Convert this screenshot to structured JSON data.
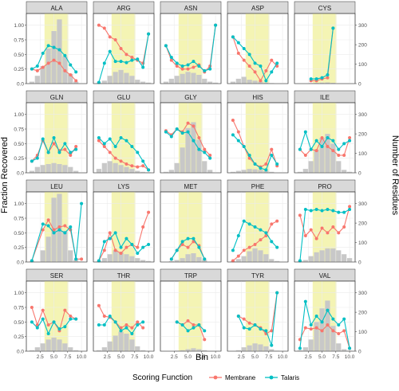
{
  "figure": {
    "xlabel": "Bin",
    "ylabel_left": "Fraction Recovered",
    "ylabel_right": "Number of Residues",
    "legend_title": "Scoring Function",
    "legend_placement": "bottom"
  },
  "colors": {
    "membrane": "#F8766D",
    "talaris": "#00BFC4",
    "bars": "#C8C8C8",
    "highlight": "#F4F4B4",
    "strip": "#D9D9D9",
    "panel_bg": "#FFFFFF",
    "grid": "#EBEBEB"
  },
  "chart_data": {
    "type": "line",
    "x_ticks": [
      "2.5",
      "5.0",
      "7.5",
      "10.0"
    ],
    "y_ticks_left": [
      "0.0",
      "0.25",
      "0.50",
      "0.75",
      "1.00"
    ],
    "y_ticks_right": [
      "0",
      "100",
      "200",
      "300"
    ],
    "xlim": [
      0,
      11
    ],
    "ylim_left": [
      0,
      1.2
    ],
    "ylim_right": [
      0,
      360
    ],
    "highlight_range": [
      3.3,
      7.6
    ],
    "grid": true,
    "legend": [
      "Membrane",
      "Talaris"
    ],
    "series_names": [
      "Membrane",
      "Talaris"
    ],
    "panels": [
      {
        "title": "ALA",
        "bins": [
          1,
          2,
          3,
          4,
          5,
          6,
          7,
          8,
          9
        ],
        "membrane": [
          0.25,
          0.22,
          0.28,
          0.35,
          0.4,
          0.35,
          0.22,
          0.15,
          0.05
        ],
        "talaris": [
          0.25,
          0.3,
          0.52,
          0.65,
          0.62,
          0.58,
          0.48,
          0.32,
          0.2
        ],
        "counts": [
          10,
          40,
          90,
          180,
          270,
          330,
          140,
          50,
          10
        ]
      },
      {
        "title": "ARG",
        "bins": [
          1,
          2,
          3,
          4,
          5,
          6,
          7,
          8,
          9,
          10
        ],
        "membrane": [
          1.0,
          0.95,
          0.8,
          0.75,
          0.6,
          0.5,
          0.45,
          0.4,
          0.35,
          0.85
        ],
        "talaris": [
          0.02,
          0.35,
          0.55,
          0.38,
          0.38,
          0.36,
          0.4,
          0.42,
          0.28,
          0.85
        ],
        "counts": [
          5,
          15,
          40,
          60,
          70,
          55,
          40,
          20,
          10,
          5
        ]
      },
      {
        "title": "ASN",
        "bins": [
          1,
          2,
          3,
          4,
          5,
          6,
          7,
          8,
          9,
          10
        ],
        "membrane": [
          0.65,
          0.4,
          0.3,
          0.25,
          0.25,
          0.28,
          0.32,
          0.2,
          0.3,
          1.0
        ],
        "talaris": [
          0.65,
          0.45,
          0.35,
          0.3,
          0.32,
          0.38,
          0.3,
          0.22,
          0.25,
          1.0
        ],
        "counts": [
          10,
          25,
          40,
          50,
          60,
          55,
          45,
          25,
          10,
          5
        ]
      },
      {
        "title": "ASP",
        "bins": [
          1,
          2,
          3,
          4,
          5,
          6,
          7,
          8,
          9
        ],
        "membrane": [
          0.8,
          0.52,
          0.4,
          0.3,
          0.2,
          0.05,
          0.22,
          0.4,
          0.3
        ],
        "talaris": [
          0.8,
          0.7,
          0.6,
          0.5,
          0.35,
          0.3,
          0.05,
          0.2,
          0.35
        ],
        "counts": [
          10,
          25,
          35,
          20,
          15,
          10,
          5,
          3,
          2
        ]
      },
      {
        "title": "CYS",
        "bins": [
          3,
          4,
          5,
          6,
          7
        ],
        "membrane": [
          0.05,
          0.05,
          0.08,
          0.1,
          0.95
        ],
        "talaris": [
          0.08,
          0.08,
          0.1,
          0.15,
          0.95
        ],
        "counts": [
          3,
          4,
          5,
          6,
          4
        ]
      },
      {
        "title": "GLN",
        "bins": [
          1,
          2,
          3,
          4,
          5,
          6,
          7,
          8,
          9
        ],
        "membrane": [
          0.2,
          0.3,
          0.55,
          0.35,
          0.5,
          0.38,
          0.4,
          0.3,
          0.45
        ],
        "talaris": [
          0.2,
          0.25,
          0.58,
          0.35,
          0.6,
          0.35,
          0.5,
          0.35,
          0.4
        ],
        "counts": [
          10,
          30,
          40,
          45,
          50,
          45,
          40,
          30,
          10
        ]
      },
      {
        "title": "GLU",
        "bins": [
          1,
          2,
          3,
          4,
          5,
          6,
          7,
          8,
          9,
          10
        ],
        "membrane": [
          0.55,
          0.45,
          0.35,
          0.25,
          0.2,
          0.15,
          0.12,
          0.1,
          0.12,
          0.05
        ],
        "talaris": [
          0.6,
          0.5,
          0.58,
          0.45,
          0.6,
          0.55,
          0.45,
          0.35,
          0.2,
          0.05
        ],
        "counts": [
          20,
          50,
          60,
          50,
          40,
          30,
          20,
          10,
          5,
          3
        ]
      },
      {
        "title": "GLY",
        "bins": [
          1,
          2,
          3,
          4,
          5,
          6,
          7,
          8,
          9
        ],
        "membrane": [
          0.72,
          0.65,
          0.75,
          0.7,
          0.85,
          0.8,
          0.6,
          0.4,
          0.3
        ],
        "talaris": [
          0.7,
          0.62,
          0.75,
          0.68,
          0.7,
          0.55,
          0.4,
          0.35,
          0.25
        ],
        "counts": [
          5,
          15,
          50,
          130,
          230,
          260,
          170,
          60,
          15
        ]
      },
      {
        "title": "HIS",
        "bins": [
          1,
          2,
          3,
          4,
          5,
          6,
          7,
          8,
          9
        ],
        "membrane": [
          0.9,
          0.7,
          0.45,
          0.25,
          0.15,
          0.1,
          0.15,
          0.4,
          0.12
        ],
        "talaris": [
          0.65,
          0.55,
          0.45,
          0.3,
          0.15,
          0.08,
          0.05,
          0.3,
          0.15
        ],
        "counts": [
          5,
          10,
          15,
          20,
          18,
          15,
          10,
          5,
          2
        ]
      },
      {
        "title": "ILE",
        "bins": [
          1,
          2,
          3,
          4,
          5,
          6,
          7,
          8,
          9,
          10
        ],
        "membrane": [
          0.4,
          0.3,
          0.4,
          0.38,
          0.6,
          0.45,
          0.38,
          0.3,
          0.3,
          0.6
        ],
        "talaris": [
          0.4,
          0.7,
          0.4,
          0.55,
          0.45,
          0.6,
          0.55,
          0.4,
          0.5,
          0.55
        ],
        "counts": [
          5,
          20,
          60,
          120,
          180,
          200,
          150,
          60,
          15,
          5
        ]
      },
      {
        "title": "LEU",
        "bins": [
          1,
          3,
          4,
          5,
          6,
          7,
          8,
          9,
          10
        ],
        "membrane": [
          0.02,
          0.55,
          0.72,
          0.55,
          0.6,
          0.62,
          0.55,
          0.05,
          0.05
        ],
        "talaris": [
          0.02,
          0.65,
          0.62,
          0.5,
          0.55,
          0.5,
          0.6,
          0.05,
          1.0
        ],
        "counts": [
          5,
          60,
          130,
          330,
          350,
          160,
          60,
          10,
          3
        ]
      },
      {
        "title": "LYS",
        "bins": [
          1,
          2,
          3,
          4,
          5,
          6,
          7,
          8,
          9,
          10
        ],
        "membrane": [
          0.02,
          0.2,
          0.5,
          0.2,
          0.15,
          0.25,
          0.3,
          0.25,
          0.6,
          0.85
        ],
        "talaris": [
          0.02,
          0.35,
          0.4,
          0.5,
          0.25,
          0.4,
          0.3,
          0.15,
          0.25,
          0.3
        ],
        "counts": [
          5,
          20,
          40,
          60,
          50,
          40,
          30,
          20,
          10,
          5
        ]
      },
      {
        "title": "MET",
        "bins": [
          2,
          3,
          4,
          5,
          6,
          7,
          8
        ],
        "membrane": [
          0.05,
          0.2,
          0.3,
          0.25,
          0.35,
          0.28,
          0.05
        ],
        "talaris": [
          0.05,
          0.2,
          0.35,
          0.4,
          0.4,
          0.25,
          0.05
        ],
        "counts": [
          5,
          10,
          20,
          40,
          45,
          25,
          10
        ]
      },
      {
        "title": "PHE",
        "bins": [
          1,
          2,
          3,
          4,
          5,
          6,
          7,
          8,
          9
        ],
        "membrane": [
          0.02,
          0.1,
          0.2,
          0.25,
          0.3,
          0.38,
          0.45,
          0.65,
          0.7
        ],
        "talaris": [
          0.2,
          0.45,
          0.7,
          0.65,
          0.6,
          0.55,
          0.5,
          0.35,
          0.25
        ],
        "counts": [
          5,
          15,
          30,
          55,
          70,
          60,
          40,
          15,
          5
        ]
      },
      {
        "title": "PRO",
        "bins": [
          1,
          2,
          3,
          4,
          5,
          6,
          7,
          8,
          9,
          10
        ],
        "membrane": [
          0.8,
          0.45,
          0.55,
          0.4,
          0.58,
          0.5,
          0.6,
          0.5,
          0.6,
          0.95
        ],
        "talaris": [
          0.02,
          0.9,
          0.88,
          0.9,
          0.88,
          0.9,
          0.88,
          0.85,
          0.85,
          0.9
        ],
        "counts": [
          5,
          10,
          30,
          50,
          60,
          70,
          70,
          60,
          40,
          20
        ]
      },
      {
        "title": "SER",
        "bins": [
          1,
          2,
          3,
          4,
          5,
          6,
          7,
          8,
          9
        ],
        "membrane": [
          0.75,
          0.45,
          0.7,
          0.45,
          0.5,
          0.35,
          0.7,
          0.6,
          0.55
        ],
        "talaris": [
          0.5,
          0.4,
          0.55,
          0.3,
          0.5,
          0.38,
          0.42,
          0.55,
          0.55
        ],
        "counts": [
          5,
          20,
          40,
          60,
          70,
          60,
          40,
          20,
          5
        ]
      },
      {
        "title": "THR",
        "bins": [
          1,
          2,
          3,
          4,
          5,
          6,
          7,
          8,
          9
        ],
        "membrane": [
          0.78,
          0.6,
          0.58,
          0.5,
          0.4,
          0.45,
          0.4,
          0.5,
          0.4
        ],
        "talaris": [
          0.45,
          0.45,
          0.6,
          0.5,
          0.35,
          0.4,
          0.3,
          0.45,
          0.5
        ],
        "counts": [
          5,
          20,
          50,
          80,
          100,
          90,
          60,
          25,
          5
        ]
      },
      {
        "title": "TRP",
        "bins": [
          3,
          4,
          5,
          6,
          7,
          8
        ],
        "membrane": [
          0.5,
          0.45,
          0.52,
          0.45,
          0.45,
          0.2
        ],
        "talaris": [
          0.5,
          0.45,
          0.35,
          0.4,
          0.45,
          0.35
        ],
        "counts": [
          3,
          5,
          10,
          15,
          10,
          5
        ]
      },
      {
        "title": "TYR",
        "bins": [
          2,
          3,
          4,
          5,
          6,
          7,
          8,
          9
        ],
        "membrane": [
          0.6,
          0.55,
          0.48,
          0.45,
          0.4,
          0.3,
          0.35,
          1.0
        ],
        "talaris": [
          0.6,
          0.4,
          0.38,
          0.45,
          0.38,
          0.35,
          0.1,
          1.0
        ],
        "counts": [
          5,
          20,
          30,
          40,
          35,
          25,
          10,
          3
        ]
      },
      {
        "title": "VAL",
        "bins": [
          1,
          2,
          3,
          4,
          5,
          6,
          7,
          8,
          9,
          10
        ],
        "membrane": [
          0.2,
          0.4,
          0.38,
          0.4,
          0.35,
          0.45,
          0.35,
          0.3,
          0.35,
          0.05
        ],
        "talaris": [
          0.05,
          0.85,
          0.45,
          0.6,
          0.5,
          0.7,
          0.55,
          0.45,
          0.55,
          0.05
        ],
        "counts": [
          5,
          20,
          60,
          150,
          220,
          260,
          130,
          40,
          10,
          3
        ]
      }
    ]
  }
}
